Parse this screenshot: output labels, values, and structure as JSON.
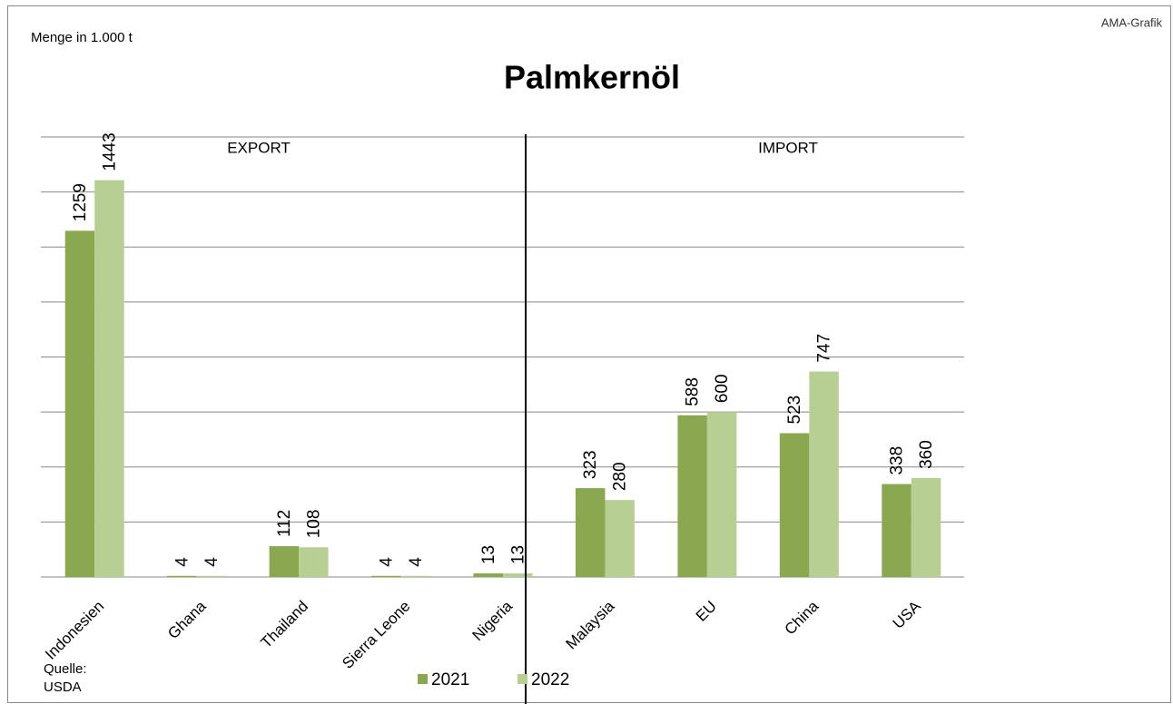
{
  "chart_data": {
    "type": "bar",
    "title": "Palmkernöl",
    "y_label": "Menge in 1.000 t",
    "credit": "AMA-Grafik",
    "source": "Quelle: USDA",
    "annotations": [
      "EXPORT",
      "IMPORT"
    ],
    "categories": [
      "Indonesien",
      "Ghana",
      "Thailand",
      "Sierra Leone",
      "Nigeria",
      "Malaysia",
      "EU",
      "China",
      "USA"
    ],
    "series": [
      {
        "name": "2021",
        "color": "#8aa84f",
        "values": [
          1259,
          4,
          112,
          4,
          13,
          323,
          588,
          523,
          338
        ]
      },
      {
        "name": "2022",
        "color": "#b8cf93",
        "values": [
          1443,
          4,
          108,
          4,
          13,
          280,
          600,
          747,
          360
        ]
      }
    ],
    "ylim": [
      0,
      1600
    ],
    "yticks": [
      0,
      200,
      400,
      600,
      800,
      1000,
      1200,
      1400,
      1600
    ],
    "grid": true
  }
}
